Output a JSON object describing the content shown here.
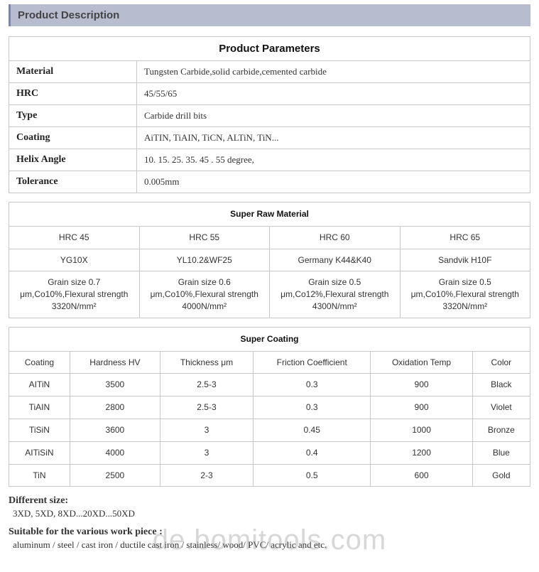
{
  "section_title": "Product Description",
  "parameters": {
    "title": "Product Parameters",
    "rows": [
      {
        "label": "Material",
        "value": "Tungsten Carbide,solid carbide,cemented carbide"
      },
      {
        "label": "HRC",
        "value": "45/55/65"
      },
      {
        "label": "Type",
        "value": "Carbide drill bits"
      },
      {
        "label": "Coating",
        "value": "AiTIN, TiAIN, TiCN, ALTiN, TiN..."
      },
      {
        "label": "Helix Angle",
        "value": "10. 15. 25. 35. 45 . 55 degree,"
      },
      {
        "label": "Tolerance",
        "value": "0.005mm"
      }
    ]
  },
  "raw_material": {
    "title": "Super Raw Material",
    "headers": [
      "HRC 45",
      "HRC 55",
      "HRC 60",
      "HRC 65"
    ],
    "codes": [
      "YG10X",
      "YL10.2&WF25",
      "Germany K44&K40",
      "Sandvik H10F"
    ],
    "specs": [
      "Grain size 0.7 μm,Co10%,Flexural strength 3320N/mm²",
      "Grain size 0.6 μm,Co10%,Flexural strength 4000N/mm²",
      "Grain size 0.5 μm,Co12%,Flexural strength 4300N/mm²",
      "Grain size 0.5 μm,Co10%,Flexural strength 3320N/mm²"
    ]
  },
  "coating": {
    "title": "Super Coating",
    "headers": [
      "Coating",
      "Hardness HV",
      "Thickness μm",
      "Friction Coefficient",
      "Oxidation Temp",
      "Color"
    ],
    "rows": [
      [
        "AITiN",
        "3500",
        "2.5-3",
        "0.3",
        "900",
        "Black"
      ],
      [
        "TiAIN",
        "2800",
        "2.5-3",
        "0.3",
        "900",
        "Violet"
      ],
      [
        "TiSiN",
        "3600",
        "3",
        "0.45",
        "1000",
        "Bronze"
      ],
      [
        "AITiSiN",
        "4000",
        "3",
        "0.4",
        "1200",
        "Blue"
      ],
      [
        "TiN",
        "2500",
        "2-3",
        "0.5",
        "600",
        "Gold"
      ]
    ]
  },
  "different_size": {
    "label": "Different size:",
    "value": "3XD, 5XD, 8XD...20XD...50XD"
  },
  "suitable": {
    "label": "Suitable for the various work piece :",
    "value": "aluminum / steel / cast iron / ductile cast iron / stainless/ wood/ PVC/ acrylic and etc."
  },
  "watermark": "de.bomitools.com"
}
